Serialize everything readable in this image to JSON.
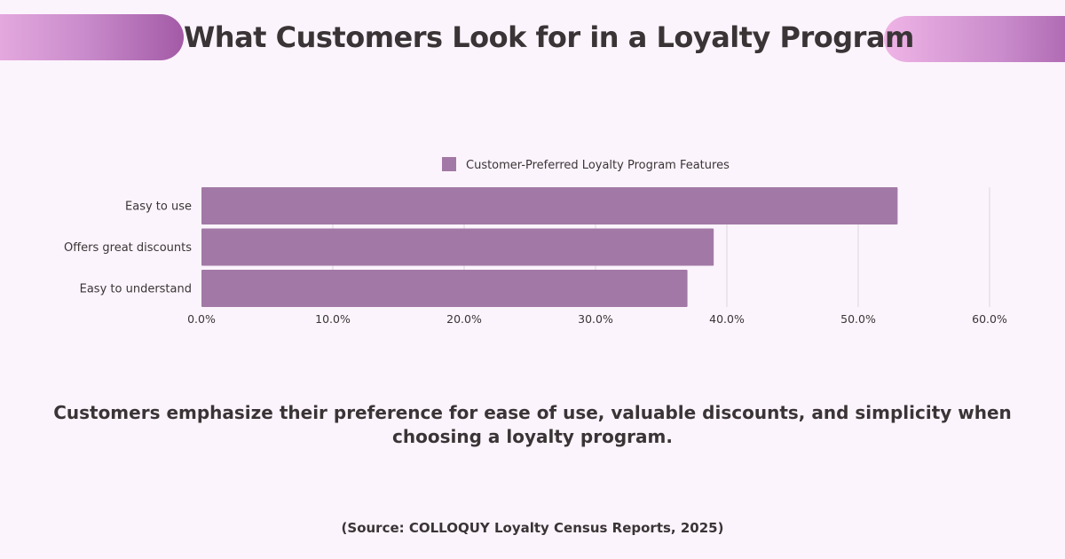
{
  "title": "What Customers Look for in a Loyalty Program",
  "summary": "Customers emphasize their preference for ease of use, valuable discounts, and simplicity when choosing a loyalty program.",
  "source": "(Source: COLLOQUY Loyalty Census Reports, 2025)",
  "colors": {
    "bar": "#a279a6",
    "background": "#fcf4fc",
    "grid": "#dcd6dc",
    "text": "#3a3436",
    "accent_gradient": [
      "#efb4e6",
      "#a35aa6"
    ]
  },
  "chart_data": {
    "type": "bar",
    "orientation": "horizontal",
    "categories": [
      "Easy to use",
      "Offers great discounts",
      "Easy to understand"
    ],
    "series": [
      {
        "name": "Customer-Preferred Loyalty Program Features",
        "values": [
          53,
          39,
          37
        ]
      }
    ],
    "xlim": [
      0,
      60
    ],
    "x_ticks": [
      "0.0%",
      "10.0%",
      "20.0%",
      "30.0%",
      "40.0%",
      "50.0%",
      "60.0%"
    ],
    "title": "",
    "xlabel": "",
    "ylabel": "",
    "grid": true,
    "legend_position": "top"
  }
}
